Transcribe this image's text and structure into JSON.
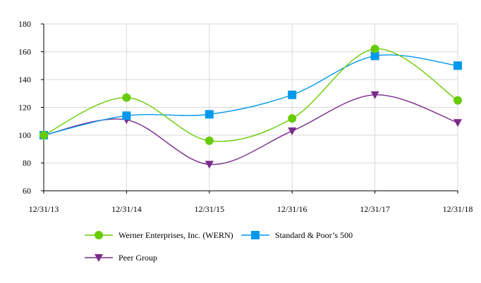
{
  "chart_data": {
    "type": "line",
    "title": "",
    "xlabel": "",
    "ylabel": "",
    "categories": [
      "12/31/13",
      "12/31/14",
      "12/31/15",
      "12/31/16",
      "12/31/17",
      "12/31/18"
    ],
    "ylim": [
      60,
      180
    ],
    "yticks": [
      60,
      80,
      100,
      120,
      140,
      160,
      180
    ],
    "grid": true,
    "legend_position": "bottom",
    "series": [
      {
        "name": "Werner Enterprises, Inc. (WERN)",
        "values": [
          100,
          127,
          96,
          112,
          162,
          125
        ],
        "color": "#66cc00",
        "marker": "circle"
      },
      {
        "name": "Standard & Poor’s 500",
        "values": [
          100,
          114,
          115,
          129,
          157,
          150
        ],
        "color": "#0099ee",
        "marker": "square"
      },
      {
        "name": "Peer Group",
        "values": [
          100,
          111,
          79,
          103,
          129,
          109
        ],
        "color": "#7a2a8a",
        "marker": "triangle-down"
      }
    ]
  }
}
